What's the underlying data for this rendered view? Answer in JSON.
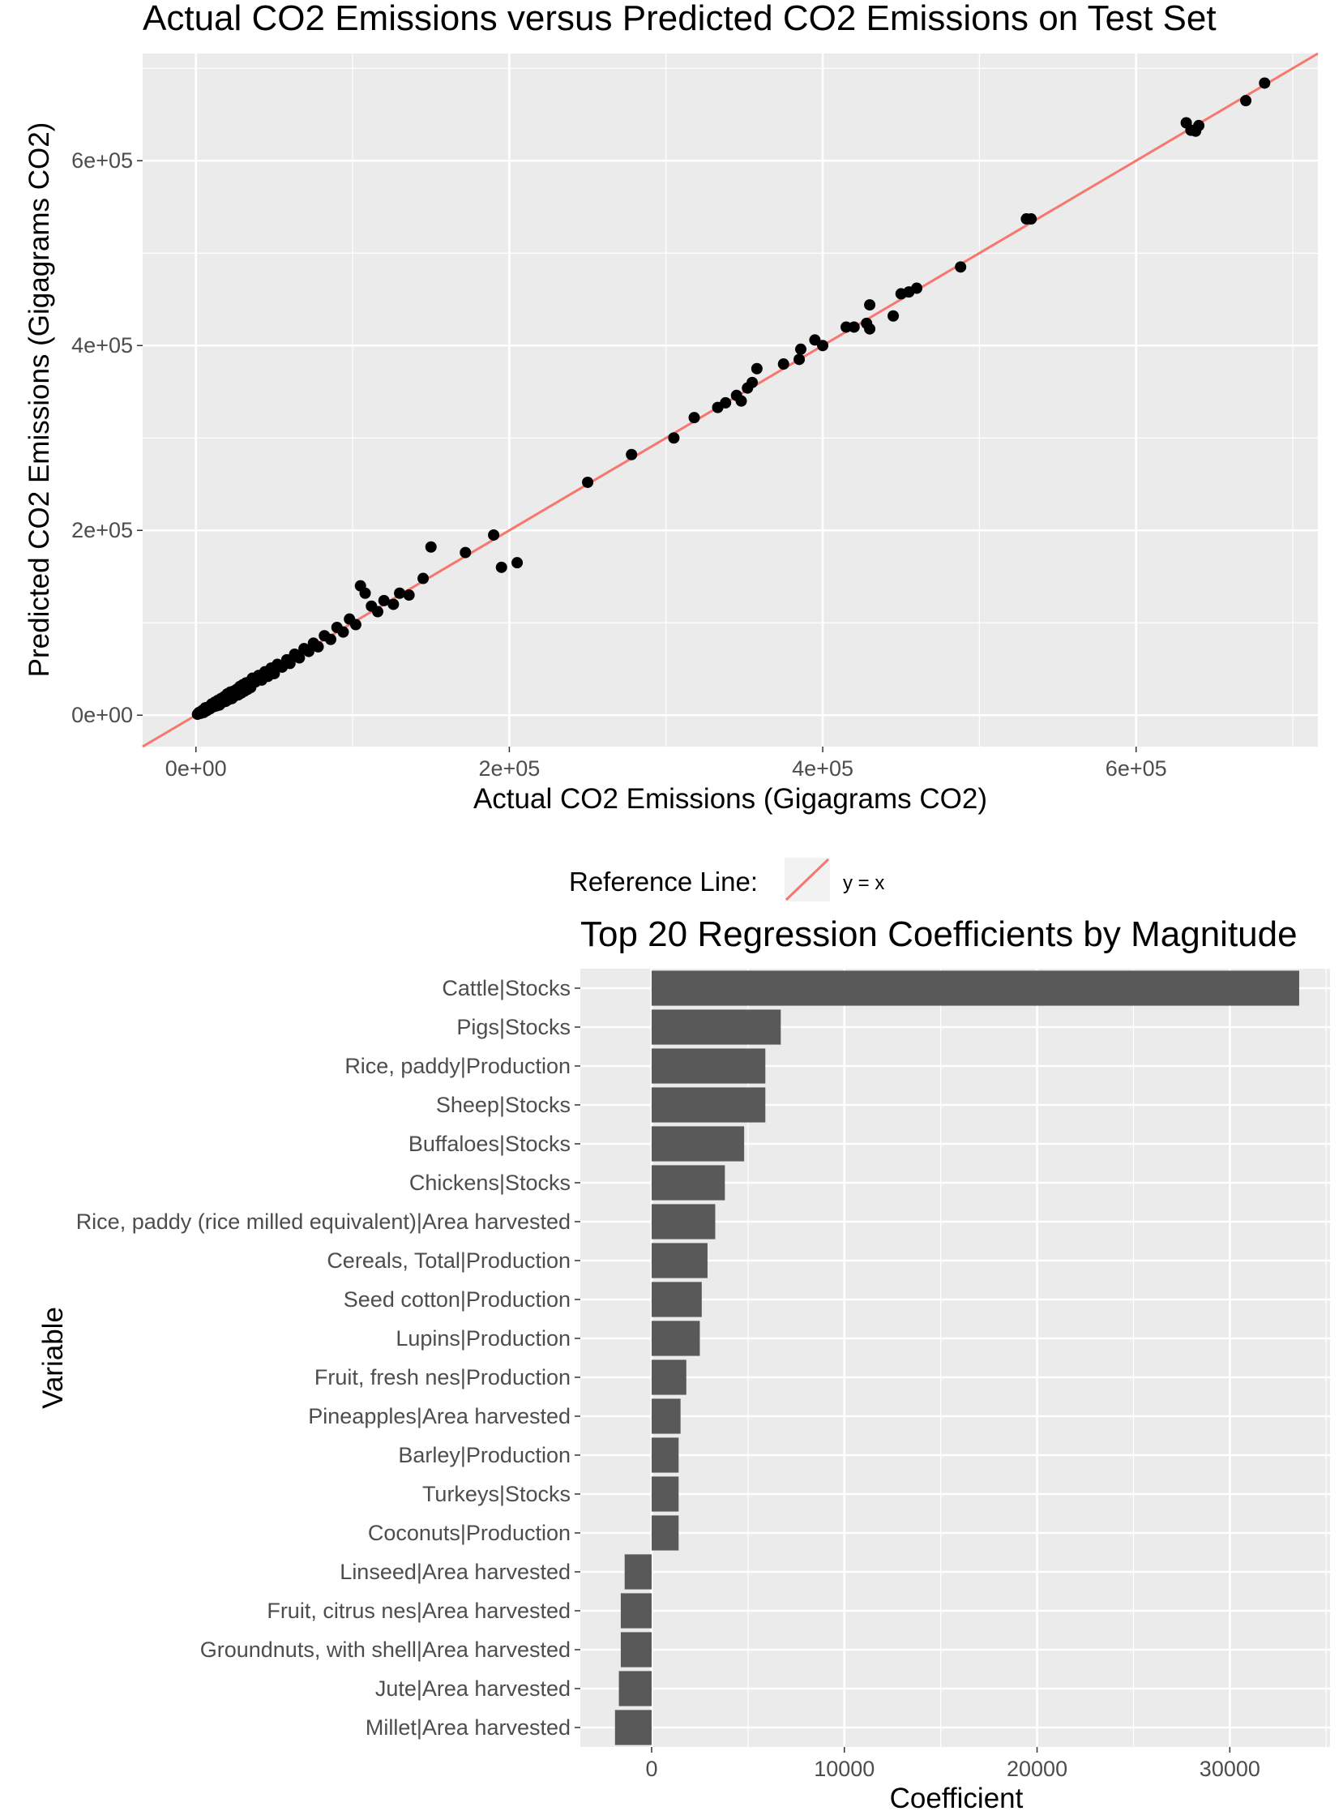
{
  "chart_data": [
    {
      "type": "scatter",
      "title": "Actual CO2 Emissions versus Predicted CO2 Emissions on Test Set",
      "xlabel": "Actual CO2 Emissions (Gigagrams CO2)",
      "ylabel": "Predicted CO2 Emissions (Gigagrams CO2)",
      "xlim": [
        -34000,
        716000
      ],
      "ylim": [
        -34000,
        716000
      ],
      "x_ticks": [
        0,
        200000,
        400000,
        600000
      ],
      "x_tick_labels": [
        "0e+00",
        "2e+05",
        "4e+05",
        "6e+05"
      ],
      "y_ticks": [
        0,
        200000,
        400000,
        600000
      ],
      "y_tick_labels": [
        "0e+00",
        "2e+05",
        "4e+05",
        "6e+05"
      ],
      "grid": true,
      "point_color": "#000000",
      "reference_line": {
        "slope": 1,
        "intercept": 0,
        "color": "#F8766D"
      },
      "legend": {
        "title": "Reference Line:",
        "label": "y = x",
        "placement": "bottom"
      },
      "points": [
        [
          1000,
          1000
        ],
        [
          2000,
          3000
        ],
        [
          3000,
          2000
        ],
        [
          4000,
          5000
        ],
        [
          5000,
          3000
        ],
        [
          6000,
          8000
        ],
        [
          7000,
          5000
        ],
        [
          8000,
          9000
        ],
        [
          9000,
          7000
        ],
        [
          10000,
          12000
        ],
        [
          11000,
          9000
        ],
        [
          12000,
          14000
        ],
        [
          13000,
          10000
        ],
        [
          14000,
          16000
        ],
        [
          15000,
          11000
        ],
        [
          16000,
          18000
        ],
        [
          17000,
          14000
        ],
        [
          18000,
          20000
        ],
        [
          19000,
          15000
        ],
        [
          20000,
          23000
        ],
        [
          21000,
          17000
        ],
        [
          22000,
          25000
        ],
        [
          23000,
          18000
        ],
        [
          24000,
          26000
        ],
        [
          25000,
          21000
        ],
        [
          26000,
          28000
        ],
        [
          27000,
          22000
        ],
        [
          28000,
          31000
        ],
        [
          29000,
          24000
        ],
        [
          30000,
          33000
        ],
        [
          31000,
          26000
        ],
        [
          32000,
          35000
        ],
        [
          33000,
          28000
        ],
        [
          34000,
          36000
        ],
        [
          35000,
          30000
        ],
        [
          36000,
          40000
        ],
        [
          38000,
          36000
        ],
        [
          40000,
          43000
        ],
        [
          42000,
          38000
        ],
        [
          44000,
          47000
        ],
        [
          46000,
          42000
        ],
        [
          48000,
          51000
        ],
        [
          50000,
          45000
        ],
        [
          52000,
          55000
        ],
        [
          55000,
          52000
        ],
        [
          58000,
          60000
        ],
        [
          60000,
          56000
        ],
        [
          63000,
          66000
        ],
        [
          66000,
          62000
        ],
        [
          69000,
          72000
        ],
        [
          72000,
          69000
        ],
        [
          75000,
          78000
        ],
        [
          78000,
          74000
        ],
        [
          82000,
          86000
        ],
        [
          86000,
          82000
        ],
        [
          90000,
          95000
        ],
        [
          94000,
          90000
        ],
        [
          98000,
          104000
        ],
        [
          102000,
          98000
        ],
        [
          105000,
          140000
        ],
        [
          108000,
          132000
        ],
        [
          112000,
          118000
        ],
        [
          116000,
          112000
        ],
        [
          120000,
          124000
        ],
        [
          126000,
          120000
        ],
        [
          130000,
          132000
        ],
        [
          136000,
          130000
        ],
        [
          145000,
          148000
        ],
        [
          150000,
          182000
        ],
        [
          172000,
          176000
        ],
        [
          190000,
          195000
        ],
        [
          195000,
          160000
        ],
        [
          205000,
          165000
        ],
        [
          250000,
          252000
        ],
        [
          278000,
          282000
        ],
        [
          305000,
          300000
        ],
        [
          318000,
          322000
        ],
        [
          333000,
          333000
        ],
        [
          338000,
          338000
        ],
        [
          345000,
          346000
        ],
        [
          348000,
          340000
        ],
        [
          352000,
          354000
        ],
        [
          355000,
          360000
        ],
        [
          358000,
          375000
        ],
        [
          375000,
          380000
        ],
        [
          385000,
          385000
        ],
        [
          386000,
          396000
        ],
        [
          395000,
          406000
        ],
        [
          400000,
          400000
        ],
        [
          415000,
          420000
        ],
        [
          420000,
          420000
        ],
        [
          428000,
          424000
        ],
        [
          430000,
          418000
        ],
        [
          430000,
          444000
        ],
        [
          445000,
          432000
        ],
        [
          450000,
          456000
        ],
        [
          455000,
          458000
        ],
        [
          460000,
          462000
        ],
        [
          488000,
          485000
        ],
        [
          530000,
          537000
        ],
        [
          533000,
          537000
        ],
        [
          632000,
          641000
        ],
        [
          635000,
          633000
        ],
        [
          638000,
          632000
        ],
        [
          640000,
          638000
        ],
        [
          670000,
          665000
        ],
        [
          682000,
          684000
        ]
      ]
    },
    {
      "type": "bar",
      "orientation": "horizontal",
      "title": "Top 20 Regression Coefficients by Magnitude",
      "xlabel": "Coefficient",
      "ylabel": "Variable",
      "xlim": [
        -3700,
        35200
      ],
      "x_ticks": [
        0,
        10000,
        20000,
        30000
      ],
      "x_tick_labels": [
        "0",
        "10000",
        "20000",
        "30000"
      ],
      "grid": true,
      "bar_color": "#595959",
      "categories": [
        "Cattle|Stocks",
        "Pigs|Stocks",
        "Rice, paddy|Production",
        "Sheep|Stocks",
        "Buffaloes|Stocks",
        "Chickens|Stocks",
        "Rice, paddy (rice milled equivalent)|Area harvested",
        "Cereals, Total|Production",
        "Seed cotton|Production",
        "Lupins|Production",
        "Fruit, fresh nes|Production",
        "Pineapples|Area harvested",
        "Barley|Production",
        "Turkeys|Stocks",
        "Coconuts|Production",
        "Linseed|Area harvested",
        "Fruit, citrus nes|Area harvested",
        "Groundnuts, with shell|Area harvested",
        "Jute|Area harvested",
        "Millet|Area harvested"
      ],
      "values": [
        33600,
        6700,
        5900,
        5900,
        4800,
        3800,
        3300,
        2900,
        2600,
        2500,
        1800,
        1500,
        1400,
        1400,
        1400,
        -1400,
        -1600,
        -1600,
        -1700,
        -1900
      ]
    }
  ]
}
